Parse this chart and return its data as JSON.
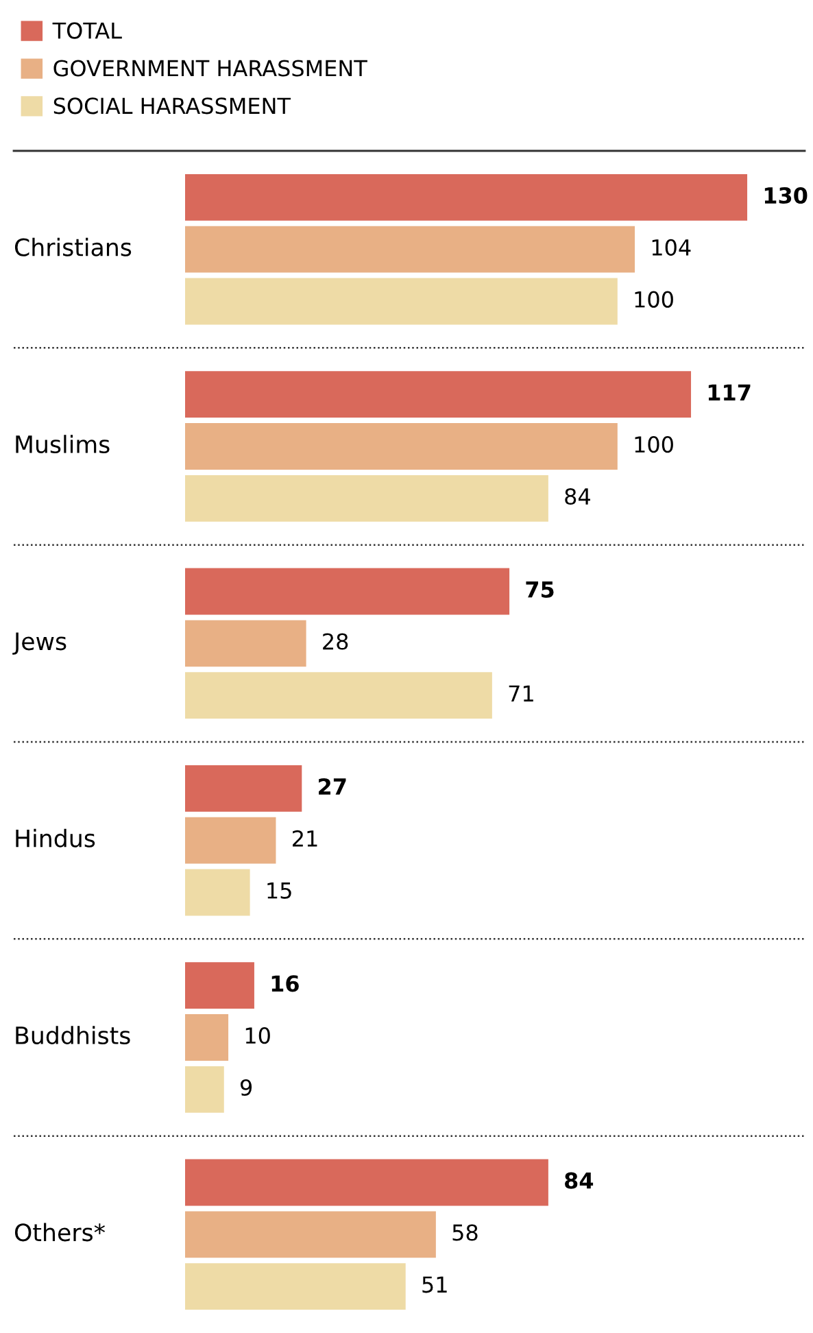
{
  "chart_data": {
    "type": "bar",
    "orientation": "horizontal",
    "categories": [
      "Christians",
      "Muslims",
      "Jews",
      "Hindus",
      "Buddhists",
      "Others*"
    ],
    "series": [
      {
        "name": "TOTAL",
        "color": "#d9695b",
        "values": [
          130,
          117,
          75,
          27,
          16,
          84
        ]
      },
      {
        "name": "GOVERNMENT HARASSMENT",
        "color": "#e8b085",
        "values": [
          104,
          100,
          28,
          21,
          10,
          58
        ]
      },
      {
        "name": "SOCIAL HARASSMENT",
        "color": "#eedba6",
        "values": [
          100,
          84,
          71,
          15,
          9,
          51
        ]
      }
    ],
    "data_labels": true,
    "legend": "top left"
  }
}
